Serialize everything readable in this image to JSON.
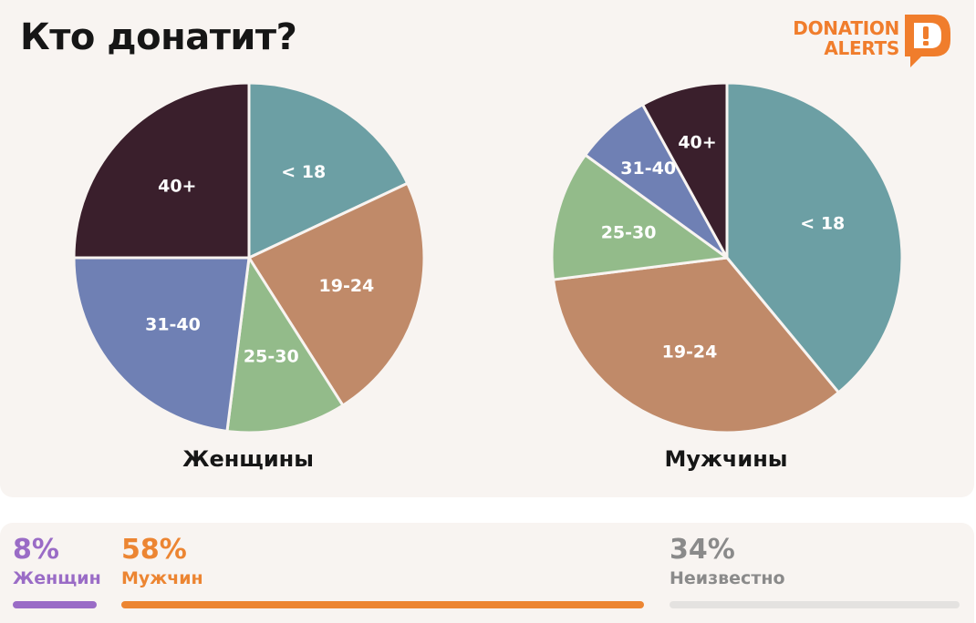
{
  "header": {
    "title": "Кто донатит?",
    "logo_line1": "DONATION",
    "logo_line2": "ALERTS",
    "logo_badge": "D!",
    "logo_color": "#f07d2c"
  },
  "chart_data": [
    {
      "type": "pie",
      "title": "Женщины",
      "slices": [
        {
          "label": "< 18",
          "value": 18,
          "color": "#6c9fa4"
        },
        {
          "label": "19-24",
          "value": 23,
          "color": "#c08a69"
        },
        {
          "label": "25-30",
          "value": 11,
          "color": "#93bb8a"
        },
        {
          "label": "31-40",
          "value": 23,
          "color": "#6f80b4"
        },
        {
          "label": "40+",
          "value": 25,
          "color": "#3a1f2c"
        }
      ]
    },
    {
      "type": "pie",
      "title": "Мужчины",
      "slices": [
        {
          "label": "< 18",
          "value": 39,
          "color": "#6c9fa4"
        },
        {
          "label": "19-24",
          "value": 34,
          "color": "#c08a69"
        },
        {
          "label": "25-30",
          "value": 12,
          "color": "#93bb8a"
        },
        {
          "label": "31-40",
          "value": 7,
          "color": "#6f80b4"
        },
        {
          "label": "40+",
          "value": 8,
          "color": "#3a1f2c"
        }
      ]
    }
  ],
  "gender_stats": [
    {
      "pct": "8%",
      "label": "Женщин",
      "share": 8,
      "color": "#9a6cc6"
    },
    {
      "pct": "58%",
      "label": "Мужчин",
      "share": 58,
      "color": "#ec8532"
    },
    {
      "pct": "34%",
      "label": "Неизвестно",
      "share": 34,
      "color": "#8a8a8a",
      "bar_color": "#e4e2e0"
    }
  ]
}
